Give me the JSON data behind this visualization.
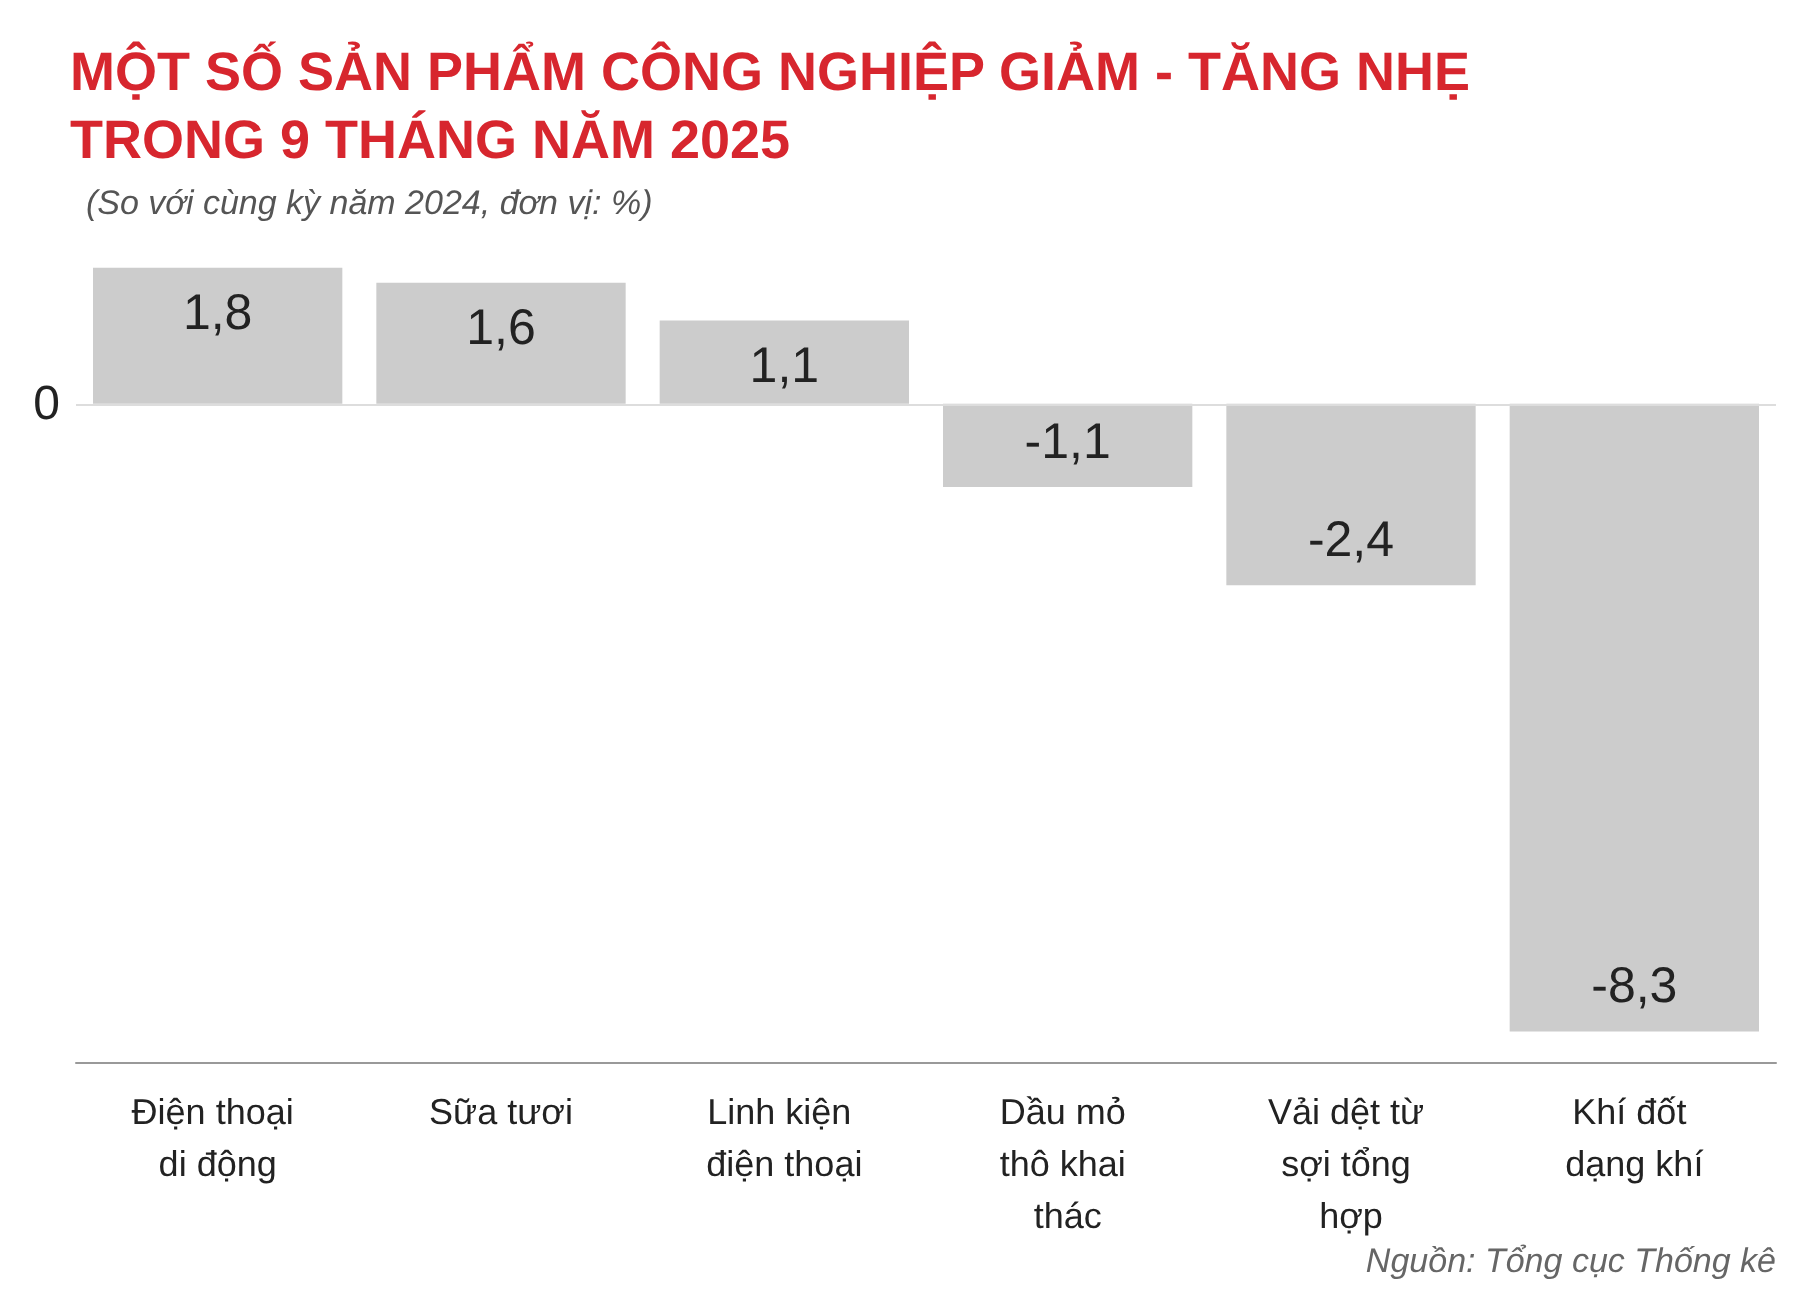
{
  "chart_data": {
    "type": "bar",
    "title": "MỘT SỐ SẢN PHẨM CÔNG NGHIỆP GIẢM - TĂNG NHẸ\nTRONG 9 THÁNG NĂM 2025",
    "subtitle": "(So với cùng kỳ năm 2024, đơn vị: %)",
    "categories": [
      "Điện thoại di động",
      "Sữa tươi",
      "Linh kiện điện thoại",
      "Dầu mỏ thô khai thác",
      "Vải dệt từ sợi tổng hợp",
      "Khí đốt dạng khí"
    ],
    "values": [
      1.8,
      1.6,
      1.1,
      -1.1,
      -2.4,
      -8.3
    ],
    "value_labels": [
      "1,8",
      "1,6",
      "1,1",
      "-1,1",
      "-2,4",
      "-8,3"
    ],
    "color": "#cccccc",
    "ref_lines": [
      {
        "axis": "y",
        "value": 0,
        "label": "0",
        "color": "#dddddd"
      }
    ],
    "annotations": [
      "Nguồn: Tổng cục Thống kê"
    ]
  }
}
